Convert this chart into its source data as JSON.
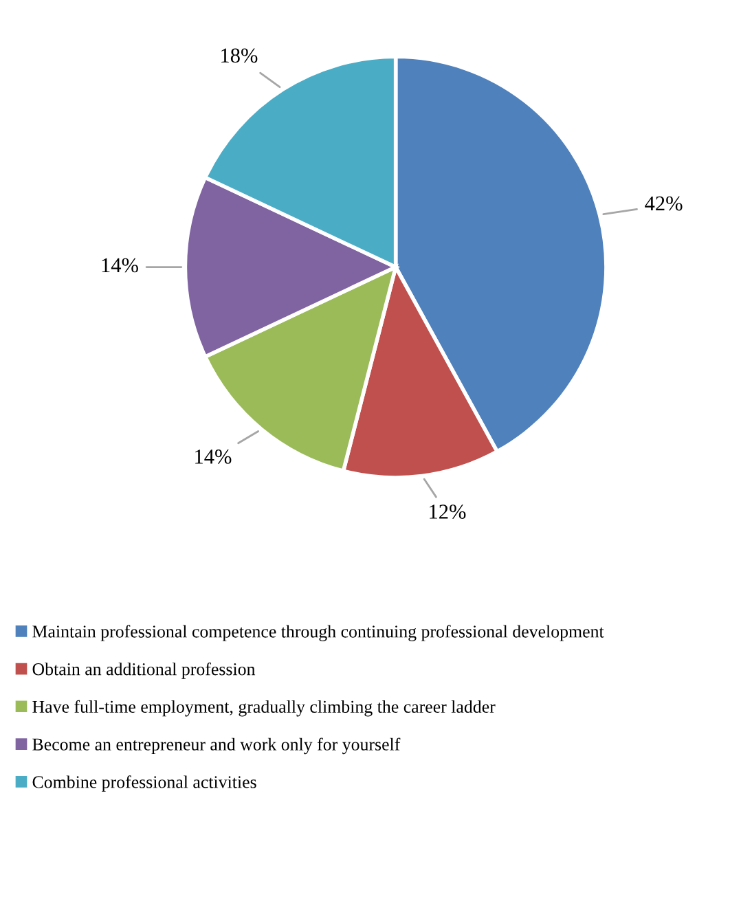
{
  "chart_data": {
    "type": "pie",
    "categories": [
      "Maintain professional competence through continuing professional development",
      "Obtain an additional profession",
      "Have full-time employment, gradually climbing the career ladder",
      "Become an entrepreneur and work only for yourself",
      "Combine professional activities"
    ],
    "values": [
      42,
      12,
      14,
      14,
      18
    ],
    "colors": [
      "#4f81bd",
      "#c0504d",
      "#9bbb59",
      "#8064a2",
      "#4bacc6"
    ],
    "value_labels": [
      "42%",
      "12%",
      "14%",
      "14%",
      "18%"
    ],
    "legend": "bottom"
  }
}
